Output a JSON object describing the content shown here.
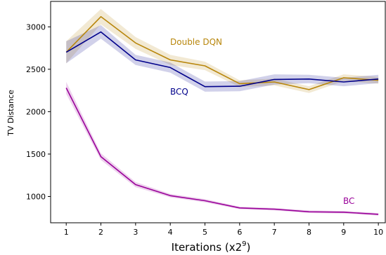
{
  "chart_data": {
    "type": "line",
    "xlabel": "Iterations (x2",
    "xlabel_superscript": "9",
    "xlabel_suffix": ")",
    "ylabel": "TV Distance",
    "x": [
      1,
      2,
      3,
      4,
      5,
      6,
      7,
      8,
      9,
      10
    ],
    "xlim": [
      0.55,
      10.2
    ],
    "ylim": [
      690,
      3300
    ],
    "yticks": [
      1000,
      1500,
      2000,
      2500,
      3000
    ],
    "grid": false,
    "legend": "inline labels",
    "series": [
      {
        "name": "Double DQN",
        "color": "#b8860b",
        "values": [
          2700,
          3120,
          2810,
          2610,
          2540,
          2330,
          2350,
          2260,
          2400,
          2370
        ],
        "spread": [
          130,
          90,
          70,
          60,
          50,
          40,
          40,
          40,
          40,
          40
        ]
      },
      {
        "name": "BCQ",
        "color": "#00008b",
        "values": [
          2700,
          2940,
          2610,
          2520,
          2295,
          2300,
          2380,
          2385,
          2350,
          2385
        ],
        "spread": [
          130,
          80,
          60,
          60,
          60,
          60,
          60,
          50,
          50,
          50
        ]
      },
      {
        "name": "BC",
        "color": "#990099",
        "values": [
          2280,
          1470,
          1140,
          1010,
          950,
          865,
          850,
          820,
          815,
          790
        ],
        "spread": [
          70,
          40,
          30,
          20,
          20,
          15,
          15,
          15,
          15,
          15
        ]
      }
    ]
  }
}
